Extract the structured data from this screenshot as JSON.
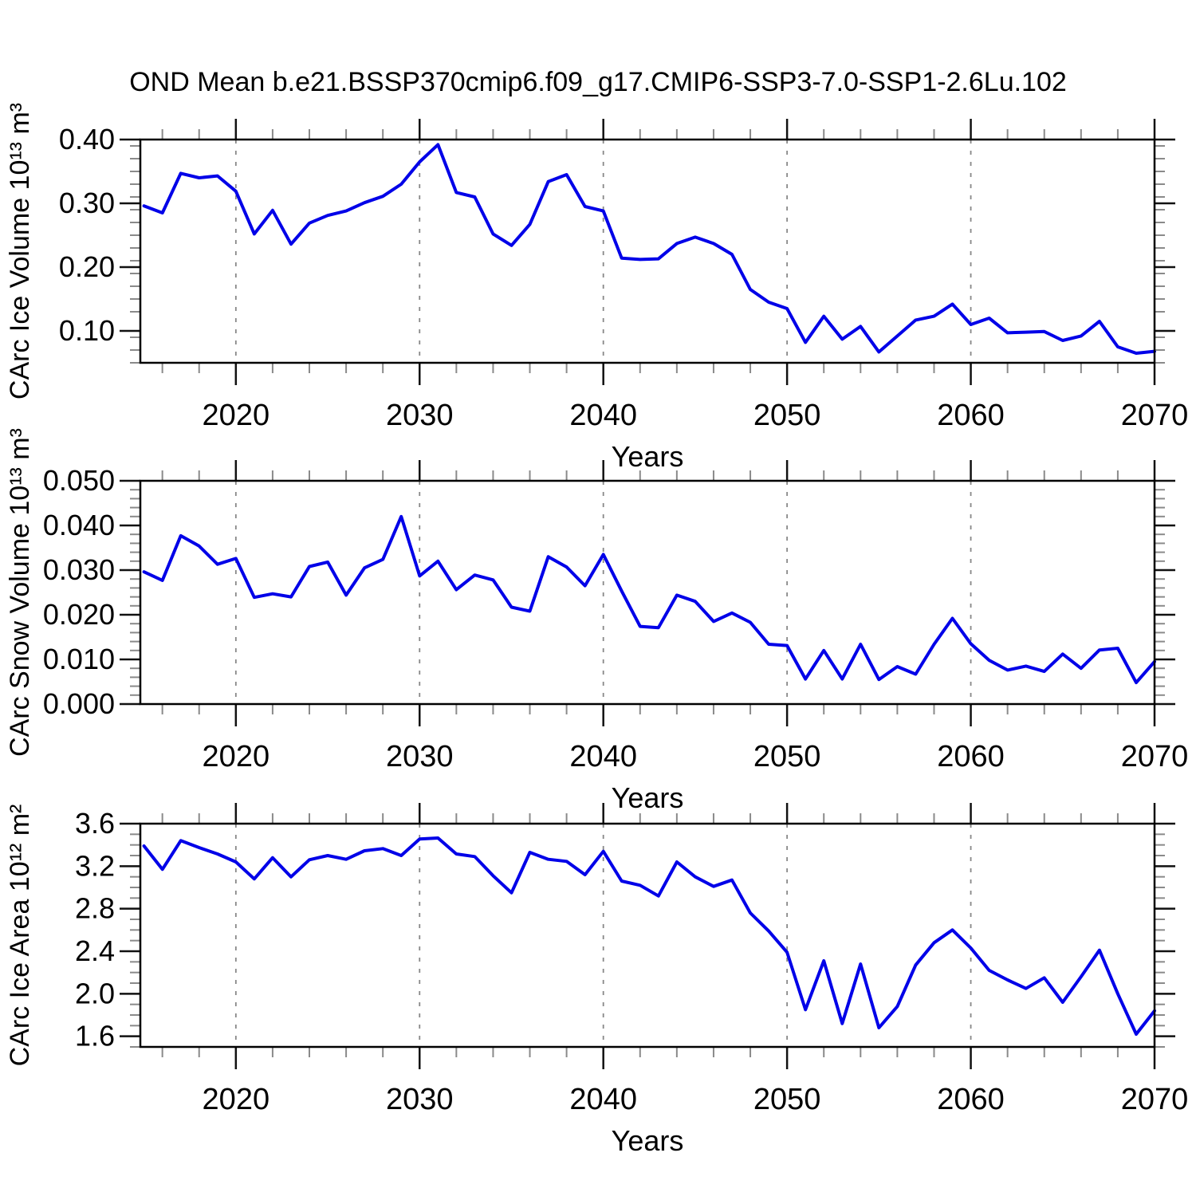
{
  "title": "OND Mean b.e21.BSSP370cmip6.f09_g17.CMIP6-SSP3-7.0-SSP1-2.6Lu.102",
  "colors": {
    "line": "#0000e8",
    "axis": "#000000",
    "grid": "#888888",
    "minor_tick": "#8a8a8a",
    "major_tick": "#111111",
    "background": "#ffffff",
    "text": "#000000"
  },
  "x_axis": {
    "label": "Years",
    "xlim": [
      2014.8,
      2070
    ],
    "major_ticks": [
      2020,
      2030,
      2040,
      2050,
      2060,
      2070
    ],
    "tick_labels": [
      "2020",
      "2030",
      "2040",
      "2050",
      "2060",
      "2070"
    ],
    "minor_step_years": 2,
    "grid_years": [
      2020,
      2030,
      2040,
      2050,
      2060
    ],
    "years": [
      2015,
      2016,
      2017,
      2018,
      2019,
      2020,
      2021,
      2022,
      2023,
      2024,
      2025,
      2026,
      2027,
      2028,
      2029,
      2030,
      2031,
      2032,
      2033,
      2034,
      2035,
      2036,
      2037,
      2038,
      2039,
      2040,
      2041,
      2042,
      2043,
      2044,
      2045,
      2046,
      2047,
      2048,
      2049,
      2050,
      2051,
      2052,
      2053,
      2054,
      2055,
      2056,
      2057,
      2058,
      2059,
      2060,
      2061,
      2062,
      2063,
      2064,
      2065,
      2066,
      2067,
      2068,
      2069,
      2070
    ]
  },
  "chart_data": [
    {
      "type": "line",
      "name": "ice-volume",
      "title": "",
      "ylabel": "CArc Ice Volume 10¹³ m³",
      "xlabel": "Years",
      "ylim": [
        0.05,
        0.4
      ],
      "ytick_vals": [
        0.1,
        0.2,
        0.3,
        0.4
      ],
      "ytick_labels": [
        "0.10",
        "0.20",
        "0.30",
        "0.40"
      ],
      "yminor_step": 0.02,
      "grid": "vertical-dashed",
      "legend": "none",
      "values": [
        0.296,
        0.285,
        0.347,
        0.34,
        0.343,
        0.319,
        0.252,
        0.289,
        0.236,
        0.269,
        0.281,
        0.288,
        0.301,
        0.311,
        0.33,
        0.365,
        0.392,
        0.317,
        0.31,
        0.252,
        0.234,
        0.267,
        0.334,
        0.345,
        0.295,
        0.288,
        0.214,
        0.212,
        0.213,
        0.237,
        0.247,
        0.237,
        0.22,
        0.165,
        0.145,
        0.135,
        0.082,
        0.123,
        0.087,
        0.107,
        0.067,
        0.092,
        0.117,
        0.123,
        0.142,
        0.11,
        0.12,
        0.097,
        0.098,
        0.099,
        0.085,
        0.092,
        0.115,
        0.075,
        0.065,
        0.068
      ]
    },
    {
      "type": "line",
      "name": "snow-volume",
      "title": "",
      "ylabel": "CArc Snow Volume 10¹³ m³",
      "xlabel": "Years",
      "ylim": [
        0.0,
        0.05
      ],
      "ytick_vals": [
        0.0,
        0.01,
        0.02,
        0.03,
        0.04,
        0.05
      ],
      "ytick_labels": [
        "0.000",
        "0.010",
        "0.020",
        "0.030",
        "0.040",
        "0.050"
      ],
      "yminor_step": 0.002,
      "grid": "vertical-dashed",
      "legend": "none",
      "values": [
        0.0296,
        0.0277,
        0.0377,
        0.0354,
        0.0313,
        0.0326,
        0.0239,
        0.0247,
        0.024,
        0.0308,
        0.0318,
        0.0244,
        0.0305,
        0.0324,
        0.042,
        0.0287,
        0.032,
        0.0256,
        0.0289,
        0.0278,
        0.0217,
        0.0208,
        0.033,
        0.0307,
        0.0265,
        0.0335,
        0.0253,
        0.0174,
        0.0171,
        0.0244,
        0.023,
        0.0185,
        0.0204,
        0.0183,
        0.0134,
        0.0131,
        0.0056,
        0.012,
        0.0056,
        0.0134,
        0.0055,
        0.0084,
        0.0067,
        0.0134,
        0.0192,
        0.0135,
        0.0098,
        0.0076,
        0.0085,
        0.0073,
        0.0112,
        0.008,
        0.0121,
        0.0125,
        0.0048,
        0.0095
      ]
    },
    {
      "type": "line",
      "name": "ice-area",
      "title": "",
      "ylabel": "CArc Ice Area 10¹² m²",
      "xlabel": "Years",
      "ylim": [
        1.5,
        3.6
      ],
      "ytick_vals": [
        1.6,
        2.0,
        2.4,
        2.8,
        3.2,
        3.6
      ],
      "ytick_labels": [
        "1.6",
        "2.0",
        "2.4",
        "2.8",
        "3.2",
        "3.6"
      ],
      "yminor_step": 0.1,
      "grid": "vertical-dashed",
      "legend": "none",
      "values": [
        3.39,
        3.17,
        3.44,
        3.375,
        3.315,
        3.24,
        3.08,
        3.28,
        3.1,
        3.26,
        3.3,
        3.265,
        3.345,
        3.365,
        3.3,
        3.455,
        3.465,
        3.315,
        3.29,
        3.11,
        2.95,
        3.33,
        3.265,
        3.245,
        3.12,
        3.34,
        3.06,
        3.02,
        2.92,
        3.24,
        3.1,
        3.01,
        3.07,
        2.76,
        2.59,
        2.39,
        1.85,
        2.31,
        1.72,
        2.28,
        1.68,
        1.88,
        2.27,
        2.48,
        2.6,
        2.43,
        2.22,
        2.13,
        2.05,
        2.15,
        1.92,
        2.16,
        2.41,
        2.0,
        1.62,
        1.84
      ]
    }
  ]
}
